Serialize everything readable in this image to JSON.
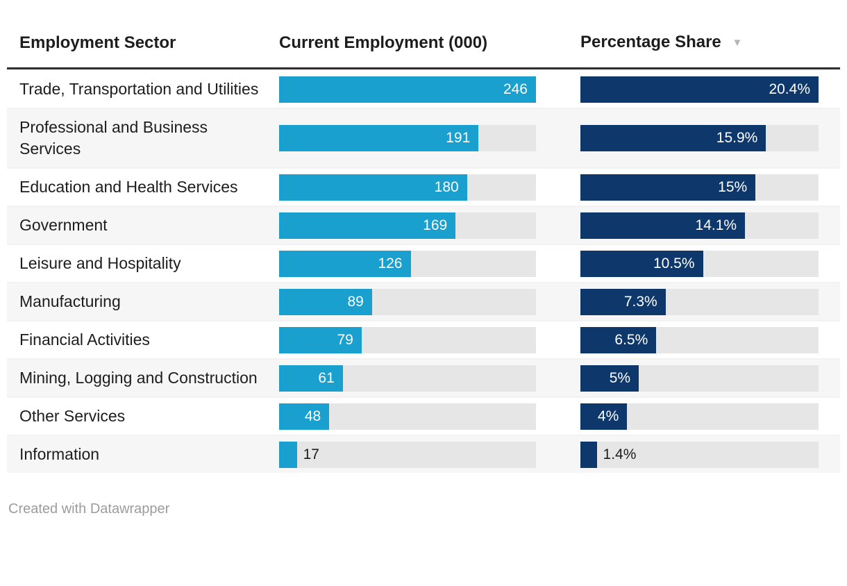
{
  "header": {
    "col1": "Employment Sector",
    "col2": "Current Employment (000)",
    "col3": "Percentage Share",
    "sort_icon": "▼",
    "sorted_column": "Percentage Share",
    "sort_direction": "descending"
  },
  "footer": {
    "credit": "Created with Datawrapper"
  },
  "colors": {
    "employment_bar": "#1aa0cf",
    "share_bar": "#0e386b",
    "bar_track": "#e6e6e6",
    "alt_row_background": "#f6f6f6",
    "header_rule": "#2e2e2e",
    "sort_icon": "#b5b5b5",
    "footer_text": "#9c9c9c"
  },
  "chart_data": {
    "type": "table",
    "columns": [
      "Employment Sector",
      "Current Employment (000)",
      "Percentage Share"
    ],
    "employment_max": 246,
    "share_max": 20.4,
    "rows": [
      {
        "sector": "Trade, Transportation and Utilities",
        "employment": 246,
        "employment_label": "246",
        "share": 20.4,
        "share_label": "20.4%"
      },
      {
        "sector": "Professional and Business Services",
        "employment": 191,
        "employment_label": "191",
        "share": 15.9,
        "share_label": "15.9%"
      },
      {
        "sector": "Education and Health Services",
        "employment": 180,
        "employment_label": "180",
        "share": 15,
        "share_label": "15%"
      },
      {
        "sector": "Government",
        "employment": 169,
        "employment_label": "169",
        "share": 14.1,
        "share_label": "14.1%"
      },
      {
        "sector": "Leisure and Hospitality",
        "employment": 126,
        "employment_label": "126",
        "share": 10.5,
        "share_label": "10.5%"
      },
      {
        "sector": "Manufacturing",
        "employment": 89,
        "employment_label": "89",
        "share": 7.3,
        "share_label": "7.3%"
      },
      {
        "sector": "Financial Activities",
        "employment": 79,
        "employment_label": "79",
        "share": 6.5,
        "share_label": "6.5%"
      },
      {
        "sector": "Mining, Logging and Construction",
        "employment": 61,
        "employment_label": "61",
        "share": 5,
        "share_label": "5%"
      },
      {
        "sector": "Other Services",
        "employment": 48,
        "employment_label": "48",
        "share": 4,
        "share_label": "4%"
      },
      {
        "sector": "Information",
        "employment": 17,
        "employment_label": "17",
        "share": 1.4,
        "share_label": "1.4%"
      }
    ]
  }
}
